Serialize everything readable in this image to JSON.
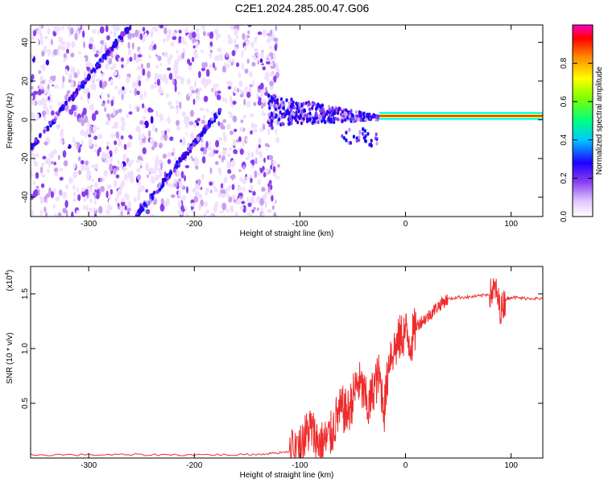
{
  "title": "C2E1.2024.285.00.47.G06",
  "colors": {
    "snr_line": "#ee2b2b",
    "colormap": [
      "#ffffff",
      "#f0e0ff",
      "#c9a0f0",
      "#8a3ff0",
      "#4000e0",
      "#0010ff",
      "#00ffff",
      "#00ff60",
      "#aaff00",
      "#ffff00",
      "#ff9000",
      "#ff0000",
      "#ff00c0"
    ]
  },
  "chart_data": [
    {
      "type": "heatmap",
      "name": "spectrogram",
      "xlabel": "Height of straight line (km)",
      "ylabel": "Frequency (Hz)",
      "xlim": [
        -355,
        130
      ],
      "ylim": [
        -50,
        49
      ],
      "xticks": [
        -300,
        -200,
        -100,
        0,
        100
      ],
      "xtick_labels": [
        "-300",
        "-200",
        "-100",
        "0",
        "100"
      ],
      "yticks": [
        -40,
        -20,
        0,
        20,
        40
      ],
      "ytick_labels": [
        "-40",
        "-20",
        "0",
        "20",
        "40"
      ],
      "colorbar": {
        "label": "Normalized spectral amplitude",
        "range": [
          0,
          1
        ],
        "ticks": [
          0.0,
          0.2,
          0.4,
          0.6,
          0.8
        ],
        "tick_labels": [
          "0.0",
          "0.2",
          "0.4",
          "0.6",
          "0.8"
        ]
      },
      "features": {
        "noise_region_x": [
          -355,
          -120
        ],
        "diagonal_tracks": [
          {
            "x": [
              -355,
              -260
            ],
            "y": [
              -15,
              49
            ]
          },
          {
            "x": [
              -255,
              -175
            ],
            "y": [
              -50,
              5
            ]
          }
        ],
        "converging_tracks": {
          "x": [
            -130,
            -25
          ]
        },
        "carrier_line": {
          "x": [
            -25,
            130
          ],
          "y": 2
        }
      }
    },
    {
      "type": "line",
      "name": "snr",
      "xlabel": "Height of straight line (km)",
      "ylabel": "SNR (10 * v/v)",
      "y_multiplier": "(x10",
      "y_multiplier_exp": "4",
      "y_multiplier_close": ")",
      "xlim": [
        -355,
        130
      ],
      "ylim": [
        0,
        1.75
      ],
      "xticks": [
        -300,
        -200,
        -100,
        0,
        100
      ],
      "xtick_labels": [
        "-300",
        "-200",
        "-100",
        "0",
        "100"
      ],
      "yticks": [
        0.5,
        1.0,
        1.5
      ],
      "ytick_labels": [
        "0.5",
        "1.0",
        "1.5"
      ],
      "series": [
        {
          "x": [
            -355,
            -300,
            -250,
            -200,
            -150,
            -130,
            -110,
            -100,
            -95,
            -90,
            -85,
            -80,
            -75,
            -70,
            -65,
            -60,
            -55,
            -50,
            -45,
            -40,
            -35,
            -30,
            -25,
            -20,
            -15,
            -10,
            -5,
            0,
            5,
            10,
            15,
            20,
            25,
            30,
            35,
            40,
            50,
            60,
            70,
            80,
            85,
            90,
            95,
            100,
            110,
            120,
            130
          ],
          "y": [
            0.03,
            0.03,
            0.03,
            0.03,
            0.03,
            0.04,
            0.06,
            0.1,
            0.2,
            0.28,
            0.18,
            0.12,
            0.16,
            0.22,
            0.38,
            0.45,
            0.4,
            0.55,
            0.7,
            0.6,
            0.45,
            0.65,
            0.75,
            0.45,
            0.95,
            1.0,
            1.1,
            1.15,
            1.05,
            1.2,
            1.25,
            1.28,
            1.33,
            1.38,
            1.42,
            1.45,
            1.47,
            1.47,
            1.48,
            1.5,
            1.55,
            1.35,
            1.45,
            1.47,
            1.46,
            1.46,
            1.45
          ]
        }
      ]
    }
  ]
}
